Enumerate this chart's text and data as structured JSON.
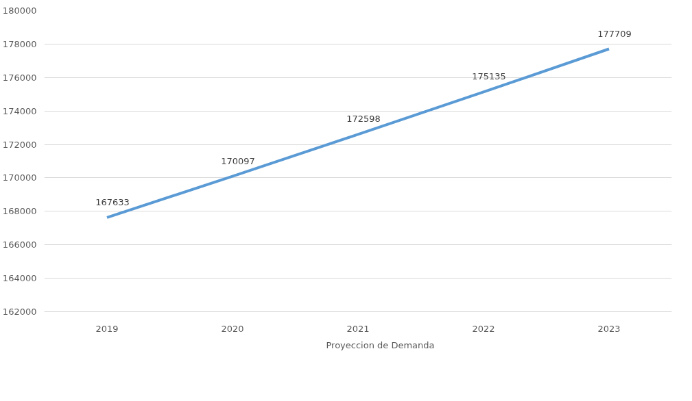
{
  "chart_data": {
    "type": "line",
    "categories": [
      "2019",
      "2020",
      "2021",
      "2022",
      "2023"
    ],
    "series": [
      {
        "name": "Proyeccion de Demanda",
        "color": "#5b9bd5",
        "values": [
          167633,
          170097,
          172598,
          175135,
          177709
        ]
      }
    ],
    "ylim": [
      162000,
      180000
    ],
    "yticks": [
      162000,
      164000,
      166000,
      168000,
      170000,
      172000,
      174000,
      176000,
      178000,
      180000
    ],
    "grid": "y",
    "legend": "bottom",
    "data_labels": true,
    "marker": "none",
    "line_style": "solid"
  }
}
